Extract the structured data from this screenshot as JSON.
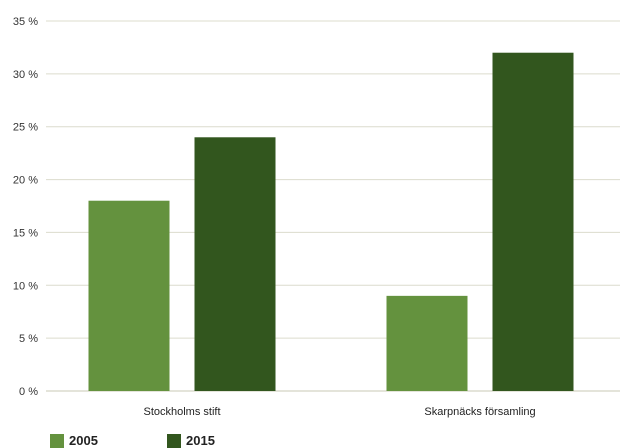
{
  "chart_data": {
    "type": "bar",
    "categories": [
      "Stockholms stift",
      "Skarpnäcks församling"
    ],
    "series": [
      {
        "name": "2005",
        "values": [
          18,
          9
        ],
        "color": "#64923e"
      },
      {
        "name": "2015",
        "values": [
          24,
          32
        ],
        "color": "#32561e"
      }
    ],
    "ylim": [
      0,
      35
    ],
    "yticks": [
      0,
      5,
      10,
      15,
      20,
      25,
      30,
      35
    ],
    "ytick_suffix": " %",
    "grid": true,
    "legend_position": "bottom-left",
    "title": "",
    "xlabel": "",
    "ylabel": ""
  }
}
